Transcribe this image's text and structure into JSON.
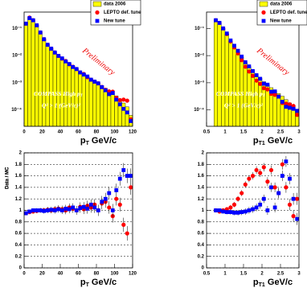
{
  "chart_data": [
    {
      "type": "histogram",
      "log_y": true,
      "legend": "top-right",
      "xlabel": {
        "text": "p",
        "sub": "T",
        "unit": " GeV/c"
      },
      "annotations": {
        "preliminary": "Preliminary",
        "experiment": {
          "text": "COMPASS High p",
          "sub": "T"
        },
        "cut": "Q² > 1 (GeV/c)²"
      },
      "bins": [
        0,
        4,
        8,
        12,
        16,
        20,
        24,
        28,
        32,
        36,
        40,
        44,
        48,
        52,
        56,
        60,
        64,
        68,
        72,
        76,
        80,
        84,
        88,
        92,
        96,
        100,
        104,
        108,
        112,
        116,
        120
      ],
      "xlim": [
        0,
        120
      ],
      "xticks": [
        0,
        20,
        40,
        60,
        80,
        100,
        120
      ],
      "ylim": [
        2.5e-05,
        0.4
      ],
      "yticks": [
        {
          "value": 0.1,
          "label": "10⁻¹"
        },
        {
          "value": 0.01,
          "label": "10⁻²"
        },
        {
          "value": 0.001,
          "label": "10⁻³"
        },
        {
          "value": 0.0001,
          "label": "10⁻⁴"
        }
      ],
      "series": [
        {
          "name": "data 2006",
          "color": "#ffff00",
          "marker": "bar",
          "values": [
            0.14,
            0.24,
            0.2,
            0.13,
            0.071,
            0.04,
            0.025,
            0.018,
            0.013,
            0.01,
            0.0079,
            0.0063,
            0.005,
            0.004,
            0.0032,
            0.0025,
            0.0021,
            0.0017,
            0.0014,
            0.0012,
            0.00095,
            0.00079,
            0.00063,
            0.0005,
            0.00042,
            0.00033,
            0.00025,
            0.00018,
            0.00013,
            6.3e-05
          ]
        },
        {
          "name": "LEPTO def. tune",
          "color": "#ff0000",
          "marker": "circle",
          "values": [
            0.15,
            0.25,
            0.2,
            0.13,
            0.071,
            0.04,
            0.025,
            0.018,
            0.013,
            0.0097,
            0.0077,
            0.0063,
            0.0048,
            0.0039,
            0.0032,
            0.0024,
            0.0021,
            0.0016,
            0.0013,
            0.0011,
            0.00095,
            0.0007,
            0.00055,
            0.00048,
            0.00047,
            0.00028,
            0.00023,
            0.00024,
            0.00022,
            4.5e-05
          ]
        },
        {
          "name": "New tune",
          "color": "#0000ff",
          "marker": "square",
          "values": [
            0.15,
            0.24,
            0.2,
            0.13,
            0.071,
            0.04,
            0.025,
            0.018,
            0.013,
            0.0098,
            0.0079,
            0.0061,
            0.0049,
            0.0038,
            0.0032,
            0.0024,
            0.002,
            0.0017,
            0.0013,
            0.0011,
            0.00095,
            0.00069,
            0.00053,
            0.00038,
            0.00042,
            0.00024,
            0.00016,
            0.00011,
            8.1e-05,
            3.9e-05
          ]
        }
      ]
    },
    {
      "type": "histogram",
      "log_y": true,
      "legend": "top-right",
      "xlabel": {
        "text": "p",
        "sub": "T1",
        "unit": " GeV/c"
      },
      "annotations": {
        "preliminary": "Preliminary",
        "experiment": {
          "text": "COMPASS High p",
          "sub": "T"
        },
        "cut": "Q² > 1 (GeV/c)²"
      },
      "bins": [
        0.7,
        0.8,
        0.9,
        1.0,
        1.1,
        1.2,
        1.3,
        1.4,
        1.5,
        1.6,
        1.7,
        1.8,
        1.9,
        2.0,
        2.1,
        2.2,
        2.3,
        2.4,
        2.5,
        2.6,
        2.7,
        2.8,
        2.9,
        3.0
      ],
      "xlim": [
        0.5,
        3
      ],
      "xticks": [
        0.5,
        1,
        1.5,
        2,
        2.5,
        3
      ],
      "ylim": [
        2.5e-05,
        0.4
      ],
      "yticks": [
        {
          "value": 0.1,
          "label": "10⁻¹"
        },
        {
          "value": 0.01,
          "label": "10⁻²"
        },
        {
          "value": 0.001,
          "label": "10⁻³"
        },
        {
          "value": 0.0001,
          "label": "10⁻⁴"
        }
      ],
      "series": [
        {
          "name": "data 2006",
          "color": "#ffff00",
          "marker": "bar",
          "values": [
            0.2,
            0.16,
            0.1,
            0.063,
            0.035,
            0.022,
            0.014,
            0.0089,
            0.0056,
            0.004,
            0.0028,
            0.002,
            0.0015,
            0.0011,
            0.00085,
            0.00066,
            0.0005,
            0.0004,
            0.00032,
            0.00024,
            0.00018,
            0.00013,
            7.9e-05
          ]
        },
        {
          "name": "LEPTO def. tune",
          "color": "#ff0000",
          "marker": "circle",
          "values": [
            0.2,
            0.16,
            0.1,
            0.062,
            0.033,
            0.02,
            0.012,
            0.0068,
            0.0039,
            0.0026,
            0.0018,
            0.0012,
            0.00091,
            0.00063,
            0.00057,
            0.00039,
            0.00036,
            0.00031,
            0.00018,
            0.00017,
            0.00016,
            0.00014,
            6.6e-05
          ]
        },
        {
          "name": "New tune",
          "color": "#0000ff",
          "marker": "square",
          "values": [
            0.2,
            0.16,
            0.1,
            0.065,
            0.036,
            0.023,
            0.015,
            0.0092,
            0.0057,
            0.004,
            0.0027,
            0.0019,
            0.0014,
            0.00092,
            0.00085,
            0.00047,
            0.00048,
            0.00031,
            0.0002,
            0.00013,
            0.00012,
            0.00011,
            9.3e-05
          ]
        }
      ]
    },
    {
      "type": "scatter",
      "grid": true,
      "ylabel": "Data / MC",
      "xlabel": {
        "text": "p",
        "sub": "T",
        "unit": " GeV/c"
      },
      "x": [
        2,
        6,
        10,
        14,
        18,
        22,
        26,
        30,
        34,
        38,
        42,
        46,
        50,
        54,
        58,
        62,
        66,
        70,
        74,
        78,
        82,
        86,
        90,
        94,
        98,
        102,
        106,
        110,
        114,
        118
      ],
      "xlim": [
        0,
        120
      ],
      "xticks": [
        0,
        20,
        40,
        60,
        80,
        100,
        120
      ],
      "ylim": [
        0,
        2
      ],
      "yticks": [
        0,
        0.2,
        0.4,
        0.6,
        0.8,
        1,
        1.2,
        1.4,
        1.6,
        1.8,
        2
      ],
      "series": [
        {
          "color": "#ff0000",
          "marker": "circle",
          "values": [
            0.95,
            0.97,
            0.98,
            0.99,
            1.0,
            1.0,
            1.01,
            1.0,
            1.02,
            1.03,
            1.02,
            1.0,
            1.05,
            1.03,
            1.0,
            1.06,
            1.02,
            1.08,
            1.05,
            1.1,
            1.0,
            1.12,
            1.15,
            1.05,
            0.9,
            1.2,
            1.1,
            0.75,
            0.6,
            1.4
          ]
        },
        {
          "color": "#0000ff",
          "marker": "square",
          "values": [
            0.95,
            0.98,
            1.0,
            1.0,
            1.0,
            0.99,
            1.0,
            1.01,
            1.0,
            1.02,
            1.0,
            1.03,
            1.02,
            1.05,
            1.0,
            1.04,
            1.06,
            1.03,
            1.1,
            1.05,
            1.0,
            1.15,
            1.2,
            1.3,
            1.0,
            1.35,
            1.55,
            1.7,
            1.6,
            1.6
          ]
        }
      ]
    },
    {
      "type": "scatter",
      "grid": true,
      "ylabel": "Data / MC",
      "xlabel": {
        "text": "p",
        "sub": "T1",
        "unit": " GeV/c"
      },
      "x": [
        0.75,
        0.85,
        0.95,
        1.05,
        1.15,
        1.25,
        1.35,
        1.45,
        1.55,
        1.65,
        1.75,
        1.85,
        1.95,
        2.05,
        2.15,
        2.25,
        2.35,
        2.45,
        2.55,
        2.65,
        2.75,
        2.85,
        2.95
      ],
      "xlim": [
        0.5,
        3
      ],
      "xticks": [
        0.5,
        1,
        1.5,
        2,
        2.5,
        3
      ],
      "ylim": [
        0,
        2
      ],
      "yticks": [
        0,
        0.2,
        0.4,
        0.6,
        0.8,
        1,
        1.2,
        1.4,
        1.6,
        1.8,
        2
      ],
      "series": [
        {
          "color": "#ff0000",
          "marker": "circle",
          "values": [
            1.0,
            0.98,
            1.0,
            1.02,
            1.05,
            1.1,
            1.2,
            1.3,
            1.45,
            1.55,
            1.6,
            1.7,
            1.65,
            1.75,
            1.5,
            1.7,
            1.4,
            1.3,
            1.8,
            1.4,
            1.1,
            0.9,
            1.2
          ]
        },
        {
          "color": "#0000ff",
          "marker": "square",
          "values": [
            1.0,
            1.0,
            0.98,
            0.97,
            0.97,
            0.96,
            0.96,
            0.97,
            0.98,
            1.0,
            1.02,
            1.05,
            1.1,
            1.2,
            1.0,
            1.4,
            1.05,
            1.3,
            1.6,
            1.85,
            1.55,
            1.2,
            0.85
          ]
        }
      ]
    }
  ]
}
